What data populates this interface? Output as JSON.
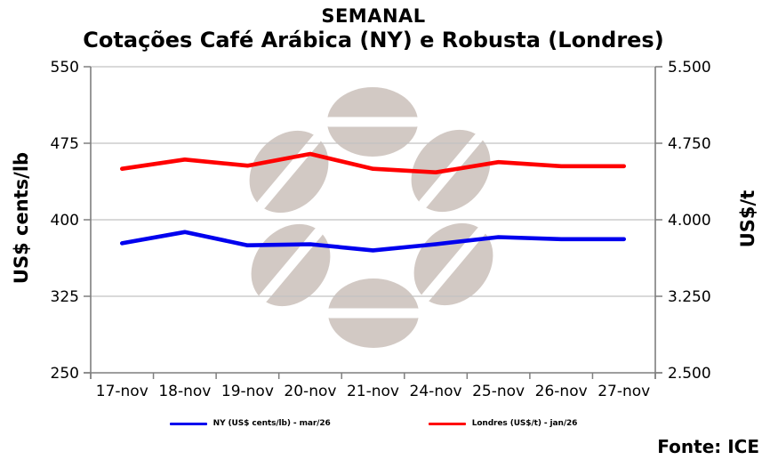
{
  "chart_data": {
    "type": "line",
    "title_line1": "SEMANAL",
    "title_line2": "Cotações Café Arábica (NY) e Robusta (Londres)",
    "categories": [
      "17-nov",
      "18-nov",
      "19-nov",
      "20-nov",
      "21-nov",
      "24-nov",
      "25-nov",
      "26-nov",
      "27-nov"
    ],
    "series": [
      {
        "id": "ny",
        "name": "NY (US$ cents/lb) - mar/26",
        "axis": "left",
        "color": "#0000ee",
        "values": [
          377,
          388,
          375,
          376,
          370,
          376,
          383,
          381,
          381
        ]
      },
      {
        "id": "londres",
        "name": "Londres (US$/t) - jan/26",
        "axis": "right",
        "color": "#ff0000",
        "values": [
          4500,
          4590,
          4530,
          4645,
          4500,
          4465,
          4565,
          4525,
          4525
        ]
      }
    ],
    "y_left": {
      "label": "US$ cents/lb",
      "min": 250,
      "max": 550,
      "ticks": [
        250,
        325,
        400,
        475,
        550
      ],
      "tick_labels": [
        "250",
        "325",
        "400",
        "475",
        "550"
      ]
    },
    "y_right": {
      "label": "US$/t",
      "min": 2500,
      "max": 5500,
      "ticks": [
        2500,
        3250,
        4000,
        4750,
        5500
      ],
      "tick_labels": [
        "2.500",
        "3.250",
        "4.000",
        "4.750",
        "5.500"
      ]
    },
    "grid": true,
    "legend_position": "bottom",
    "watermark_icon": "coffee-beans-logo"
  },
  "legend": {
    "items": [
      {
        "label": "NY (US$ cents/lb) - mar/26",
        "color": "#0000ee"
      },
      {
        "label": "Londres (US$/t) - jan/26",
        "color": "#ff0000"
      }
    ]
  },
  "source": {
    "label": "Fonte: ICE"
  },
  "colors": {
    "grid": "#c2c2c2",
    "axis": "#7f7f7f",
    "watermark": "#cbc0ba",
    "text": "#000000",
    "background": "#ffffff"
  }
}
